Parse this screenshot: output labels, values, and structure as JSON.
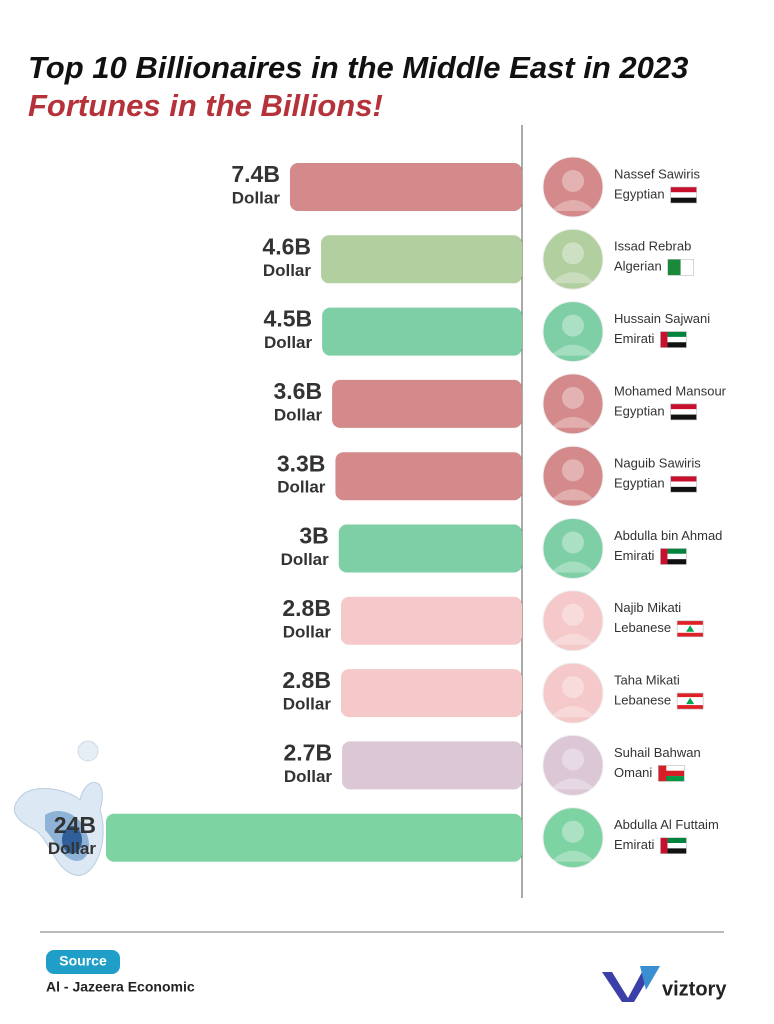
{
  "chart_data": {
    "type": "bar",
    "title": "Top 10 Billionaires in the Middle East in 2023",
    "subtitle": "Fortunes in the Billions!",
    "unit_label": "Dollar",
    "categories": [
      "Nassef Sawiris",
      "Issad Rebrab",
      "Hussain Sajwani",
      "Mohamed Mansour",
      "Naguib Sawiris",
      "Abdulla bin Ahmad",
      "Najib Mikati",
      "Taha Mikati",
      "Suhail Bahwan",
      "Abdulla Al Futtaim"
    ],
    "nationalities": [
      "Egyptian",
      "Algerian",
      "Emirati",
      "Egyptian",
      "Egyptian",
      "Emirati",
      "Lebanese",
      "Lebanese",
      "Omani",
      "Emirati"
    ],
    "values": [
      7.4,
      4.6,
      4.5,
      3.6,
      3.3,
      3,
      2.8,
      2.8,
      2.7,
      24
    ],
    "value_labels": [
      "7.4B",
      "4.6B",
      "4.5B",
      "3.6B",
      "3.3B",
      "3B",
      "2.8B",
      "2.8B",
      "2.7B",
      "24B"
    ],
    "colors": [
      "#d48a8a",
      "#b2cfa0",
      "#7ecfa6",
      "#d48a8a",
      "#d48a8a",
      "#7ecfa6",
      "#f5c9c9",
      "#f5c9c9",
      "#dcc7d6",
      "#7ed3a3"
    ]
  },
  "source_label": "Source",
  "source": "Al - Jazeera Economic",
  "brand": "viztory"
}
